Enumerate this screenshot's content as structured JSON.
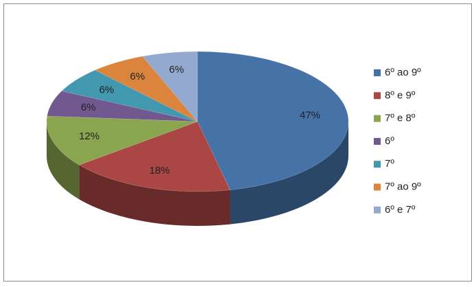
{
  "chart_data": {
    "type": "pie",
    "categories": [
      "6º ao 9º",
      "8º e 9º",
      "7º e 8º",
      "6º",
      "7º",
      "7º ao 9º",
      "6º e 7º"
    ],
    "values": [
      47,
      18,
      12,
      6,
      6,
      6,
      6
    ],
    "value_labels": [
      "47%",
      "18%",
      "12%",
      "6%",
      "6%",
      "6%",
      "6%"
    ],
    "colors": [
      "#4572a7",
      "#aa4643",
      "#89a54e",
      "#71588f",
      "#4198af",
      "#db843d",
      "#93a9cf"
    ],
    "legend": "right"
  }
}
